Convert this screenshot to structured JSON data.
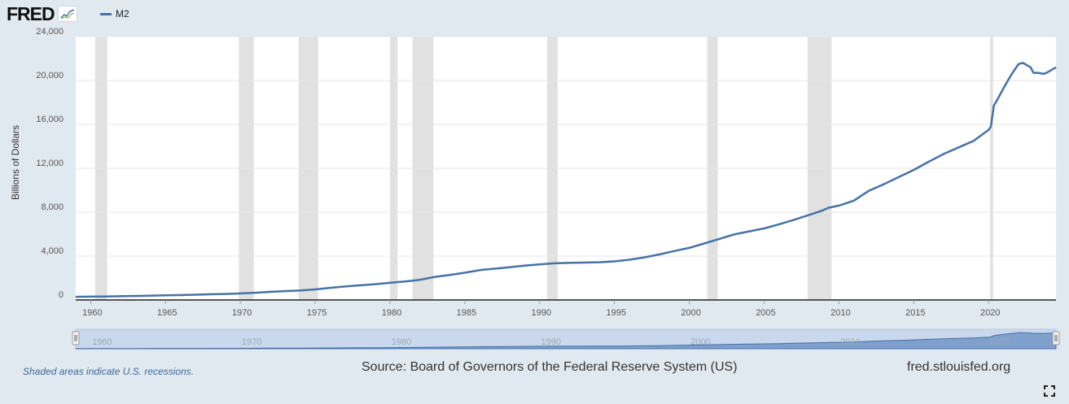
{
  "header": {
    "logo_text": "FRED",
    "logo_icon": "fred-graph-icon",
    "series_label": "M2",
    "series_color": "#4572a7"
  },
  "footer": {
    "recession_note": "Shaded areas indicate U.S. recessions.",
    "source": "Source: Board of Governors of the Federal Reserve System (US)",
    "site": "fred.stlouisfed.org",
    "fullscreen_icon": "fullscreen-icon"
  },
  "chart_data": {
    "type": "line",
    "title": "",
    "xlabel": "",
    "ylabel": "Billions of Dollars",
    "ylim": [
      0,
      24000
    ],
    "xlim": [
      1959.0,
      2024.5
    ],
    "yticks": [
      0,
      4000,
      8000,
      12000,
      16000,
      20000,
      24000
    ],
    "ytick_labels": [
      "0",
      "4,000",
      "8,000",
      "12,000",
      "16,000",
      "20,000",
      "24,000"
    ],
    "xticks": [
      1960,
      1965,
      1970,
      1975,
      1980,
      1985,
      1990,
      1995,
      2000,
      2005,
      2010,
      2015,
      2020
    ],
    "navigator_ticks": [
      1960,
      1970,
      1980,
      1990,
      2000,
      2010,
      2020
    ],
    "grid": true,
    "legend_position": "top-left",
    "recessions": [
      [
        1960.3,
        1961.1
      ],
      [
        1969.9,
        1970.9
      ],
      [
        1973.9,
        1975.2
      ],
      [
        1980.0,
        1980.5
      ],
      [
        1981.5,
        1982.9
      ],
      [
        1990.5,
        1991.2
      ],
      [
        2001.2,
        2001.9
      ],
      [
        2007.9,
        2009.5
      ],
      [
        2020.1,
        2020.3
      ]
    ],
    "recession_color": "#e1e1e1",
    "series": [
      {
        "name": "M2",
        "x": [
          1959.0,
          1960,
          1961,
          1962,
          1963,
          1964,
          1965,
          1966,
          1967,
          1968,
          1969,
          1970,
          1971,
          1972,
          1973,
          1974,
          1975,
          1976,
          1977,
          1978,
          1979,
          1980,
          1981,
          1982,
          1983,
          1984,
          1985,
          1986,
          1987,
          1988,
          1989,
          1990,
          1991,
          1992,
          1993,
          1994,
          1995,
          1996,
          1997,
          1998,
          1999,
          2000,
          2001,
          2002,
          2003,
          2004,
          2005,
          2006,
          2007,
          2008,
          2008.9,
          2009.3,
          2010,
          2011,
          2011.6,
          2012,
          2013,
          2014,
          2015,
          2016,
          2017,
          2018,
          2019,
          2020.0,
          2020.15,
          2020.35,
          2020.6,
          2021.0,
          2021.5,
          2022.0,
          2022.3,
          2022.8,
          2023.0,
          2023.3,
          2023.7,
          2024.0,
          2024.5
        ],
        "values": [
          286,
          300,
          320,
          340,
          365,
          395,
          420,
          445,
          480,
          515,
          545,
          590,
          660,
          740,
          810,
          860,
          960,
          1100,
          1230,
          1330,
          1440,
          1560,
          1680,
          1840,
          2100,
          2280,
          2480,
          2720,
          2850,
          2980,
          3130,
          3240,
          3340,
          3380,
          3410,
          3440,
          3520,
          3670,
          3880,
          4150,
          4460,
          4750,
          5150,
          5560,
          5970,
          6250,
          6520,
          6900,
          7300,
          7750,
          8150,
          8400,
          8600,
          9050,
          9600,
          9950,
          10550,
          11200,
          11850,
          12600,
          13300,
          13900,
          14500,
          15500,
          15800,
          17700,
          18300,
          19300,
          20500,
          21500,
          21600,
          21200,
          20700,
          20700,
          20600,
          20800,
          21200
        ]
      }
    ]
  }
}
